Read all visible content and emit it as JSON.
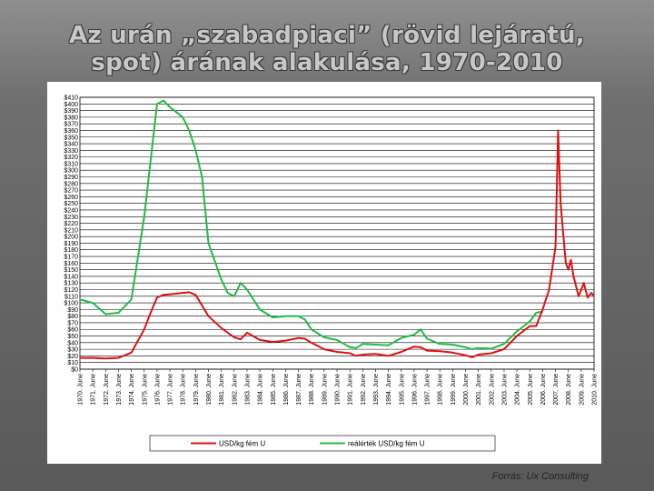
{
  "slide": {
    "title_line1": "Az urán „szabadpiaci” (rövid lejáratú,",
    "title_line2": "spot) árának alakulása, 1970-2010",
    "source": "Forrás: Ux Consulting"
  },
  "colors": {
    "series_usd": "#dd1111",
    "series_real": "#22bb44",
    "grid": "#000000"
  },
  "chart_data": {
    "type": "line",
    "title": "",
    "xlabel": "",
    "ylabel": "",
    "ylim": [
      0,
      410
    ],
    "yticks": [
      "$0",
      "$10",
      "$20",
      "$30",
      "$40",
      "$50",
      "$60",
      "$70",
      "$80",
      "$90",
      "$100",
      "$110",
      "$120",
      "$130",
      "$140",
      "$150",
      "$160",
      "$170",
      "$180",
      "$190",
      "$200",
      "$210",
      "$220",
      "$230",
      "$240",
      "$250",
      "$260",
      "$270",
      "$280",
      "$290",
      "$300",
      "$310",
      "$320",
      "$330",
      "$340",
      "$350",
      "$360",
      "$370",
      "$380",
      "$390",
      "$400",
      "$410"
    ],
    "grid": true,
    "legend_position": "bottom",
    "categories": [
      "1970. June",
      "1971. June",
      "1972. June",
      "1973. June",
      "1974. June",
      "1975. June",
      "1976. June",
      "1977. June",
      "1978. June",
      "1979. June",
      "1980. June",
      "1981. June",
      "1982. June",
      "1983. June",
      "1984. June",
      "1985. June",
      "1986. June",
      "1987. June",
      "1988. June",
      "1989. June",
      "1990. June",
      "1991. June",
      "1992. June",
      "1993. June",
      "1994. June",
      "1995. June",
      "1996. June",
      "1997. June",
      "1998. June",
      "1999. June",
      "2000. June",
      "2001. June",
      "2002. June",
      "2003. June",
      "2004. June",
      "2005. June",
      "2006. June",
      "2007. June",
      "2008. June",
      "2009. June",
      "2010. June"
    ],
    "series": [
      {
        "name": "USD/kg fém U",
        "color": "#dd1111",
        "x": [
          1970,
          1971,
          1972,
          1973,
          1974,
          1975,
          1975.5,
          1976,
          1976.5,
          1977,
          1978,
          1978.5,
          1979,
          1980,
          1981,
          1982,
          1982.5,
          1983,
          1984,
          1985,
          1986,
          1987,
          1987.5,
          1988,
          1989,
          1990,
          1991,
          1991.5,
          1992,
          1993,
          1994,
          1995,
          1996,
          1996.5,
          1997,
          1998,
          1999,
          2000,
          2000.5,
          2001,
          2002,
          2003,
          2004,
          2005,
          2005.5,
          2006,
          2006.5,
          2007,
          2007.2,
          2007.4,
          2007.6,
          2007.8,
          2008,
          2008.2,
          2008.4,
          2008.6,
          2008.8,
          2009,
          2009.2,
          2009.5,
          2009.8,
          2010
        ],
        "y": [
          17,
          17,
          16,
          17,
          25,
          60,
          85,
          108,
          112,
          113,
          115,
          116,
          112,
          80,
          62,
          48,
          45,
          55,
          44,
          41,
          43,
          47,
          46,
          40,
          30,
          26,
          24,
          20,
          22,
          23,
          20,
          26,
          34,
          33,
          28,
          27,
          25,
          21,
          18,
          22,
          24,
          30,
          50,
          65,
          65,
          90,
          120,
          185,
          360,
          250,
          205,
          160,
          150,
          165,
          140,
          125,
          110,
          120,
          130,
          108,
          115,
          110
        ]
      },
      {
        "name": "reálérték USD/kg fém U",
        "color": "#22bb44",
        "x": [
          1970,
          1971,
          1972,
          1973,
          1974,
          1975,
          1976,
          1976.5,
          1977,
          1978,
          1978.5,
          1979,
          1979.5,
          1980,
          1981,
          1981.5,
          1982,
          1982.5,
          1983,
          1984,
          1985,
          1986,
          1987,
          1987.5,
          1988,
          1989,
          1989.5,
          1990,
          1991,
          1991.5,
          1992,
          1993,
          1994,
          1995,
          1996,
          1996.5,
          1997,
          1998,
          1999,
          2000,
          2000.5,
          2001,
          2002,
          2003,
          2004,
          2005,
          2005.5,
          2006
        ],
        "y": [
          105,
          100,
          83,
          85,
          105,
          230,
          400,
          405,
          395,
          380,
          360,
          330,
          290,
          190,
          135,
          115,
          110,
          130,
          120,
          90,
          78,
          80,
          80,
          75,
          60,
          48,
          46,
          44,
          33,
          32,
          38,
          37,
          36,
          47,
          52,
          60,
          46,
          38,
          37,
          33,
          30,
          32,
          31,
          38,
          57,
          72,
          85,
          87
        ]
      }
    ]
  }
}
